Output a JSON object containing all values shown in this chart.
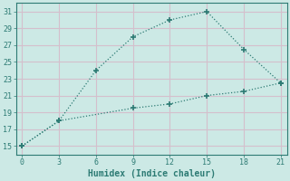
{
  "xlabel": "Humidex (Indice chaleur)",
  "line1_x": [
    0,
    3,
    6,
    9,
    12,
    15,
    18,
    21
  ],
  "line1_y": [
    15,
    18,
    24,
    28,
    30,
    31,
    26.5,
    22.5
  ],
  "line2_x": [
    0,
    3,
    9,
    12,
    15,
    18,
    21
  ],
  "line2_y": [
    15,
    18,
    19.5,
    20,
    21,
    21.5,
    22.5
  ],
  "line_color": "#2d7b74",
  "bg_color": "#cce9e5",
  "grid_color": "#d4bfcc",
  "xlim": [
    -0.5,
    21.5
  ],
  "ylim": [
    14.0,
    32.0
  ],
  "xticks": [
    0,
    3,
    6,
    9,
    12,
    15,
    18,
    21
  ],
  "yticks": [
    15,
    17,
    19,
    21,
    23,
    25,
    27,
    29,
    31
  ],
  "marker": "+",
  "markersize": 4,
  "linewidth": 0.9,
  "tick_fontsize": 6.0,
  "xlabel_fontsize": 7.0
}
